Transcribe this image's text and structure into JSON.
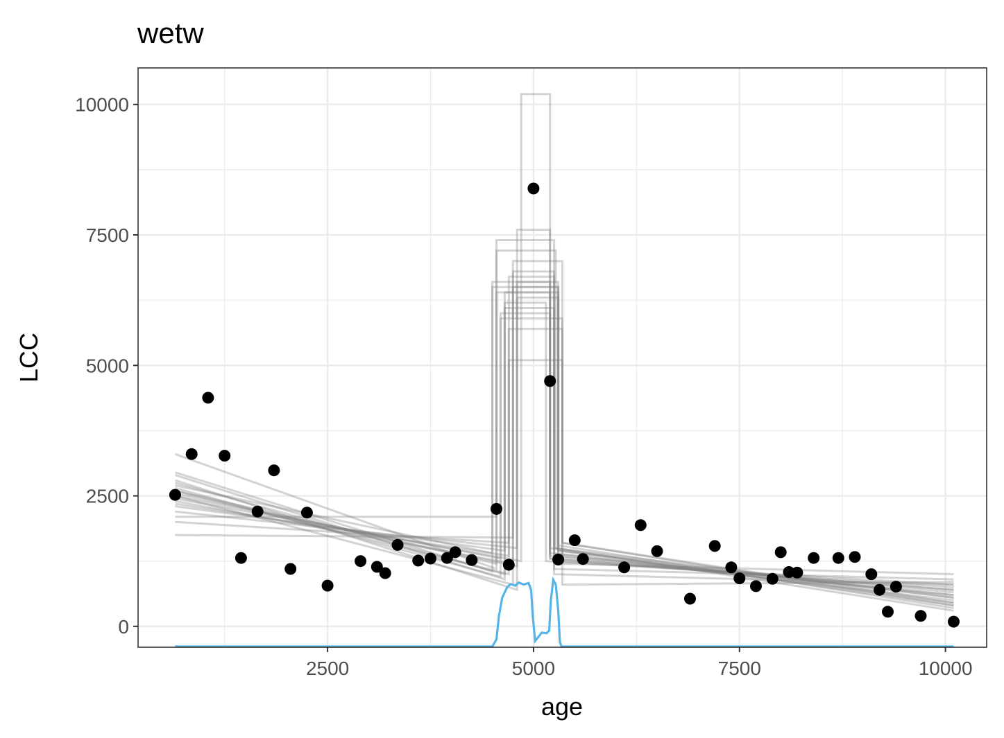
{
  "chart_data": {
    "type": "scatter",
    "title": "wetw",
    "xlabel": "age",
    "ylabel": "LCC",
    "xlim": [
      200,
      10500
    ],
    "ylim": [
      -400,
      10700
    ],
    "x_ticks": [
      2500,
      5000,
      7500,
      10000
    ],
    "x_tick_labels": [
      "2500",
      "5000",
      "7500",
      "10000"
    ],
    "y_ticks": [
      0,
      2500,
      5000,
      7500,
      10000
    ],
    "y_tick_labels": [
      "0",
      "2500",
      "5000",
      "7500",
      "10000"
    ],
    "grid": true,
    "colors": {
      "points": "#000000",
      "sample_lines": "#808080",
      "density": "#56b4e9",
      "panel_border": "#333333",
      "grid": "#ebebeb"
    },
    "points": [
      {
        "x": 650,
        "y": 2520
      },
      {
        "x": 850,
        "y": 3300
      },
      {
        "x": 1050,
        "y": 4380
      },
      {
        "x": 1250,
        "y": 3270
      },
      {
        "x": 1450,
        "y": 1310
      },
      {
        "x": 1650,
        "y": 2200
      },
      {
        "x": 1850,
        "y": 2990
      },
      {
        "x": 2050,
        "y": 1100
      },
      {
        "x": 2250,
        "y": 2180
      },
      {
        "x": 2500,
        "y": 780
      },
      {
        "x": 2900,
        "y": 1250
      },
      {
        "x": 3100,
        "y": 1140
      },
      {
        "x": 3200,
        "y": 1020
      },
      {
        "x": 3350,
        "y": 1560
      },
      {
        "x": 3600,
        "y": 1260
      },
      {
        "x": 3750,
        "y": 1300
      },
      {
        "x": 3950,
        "y": 1310
      },
      {
        "x": 4050,
        "y": 1420
      },
      {
        "x": 4250,
        "y": 1270
      },
      {
        "x": 4550,
        "y": 2250
      },
      {
        "x": 4700,
        "y": 1180
      },
      {
        "x": 5000,
        "y": 8390
      },
      {
        "x": 5200,
        "y": 4700
      },
      {
        "x": 5300,
        "y": 1280
      },
      {
        "x": 5500,
        "y": 1650
      },
      {
        "x": 5600,
        "y": 1290
      },
      {
        "x": 6100,
        "y": 1130
      },
      {
        "x": 6300,
        "y": 1940
      },
      {
        "x": 6500,
        "y": 1440
      },
      {
        "x": 6900,
        "y": 530
      },
      {
        "x": 7200,
        "y": 1540
      },
      {
        "x": 7400,
        "y": 1130
      },
      {
        "x": 7500,
        "y": 920
      },
      {
        "x": 7700,
        "y": 770
      },
      {
        "x": 7900,
        "y": 910
      },
      {
        "x": 8000,
        "y": 1420
      },
      {
        "x": 8100,
        "y": 1040
      },
      {
        "x": 8200,
        "y": 1030
      },
      {
        "x": 8400,
        "y": 1310
      },
      {
        "x": 8700,
        "y": 1310
      },
      {
        "x": 8900,
        "y": 1330
      },
      {
        "x": 9100,
        "y": 1000
      },
      {
        "x": 9200,
        "y": 700
      },
      {
        "x": 9300,
        "y": 280
      },
      {
        "x": 9400,
        "y": 760
      },
      {
        "x": 9700,
        "y": 200
      },
      {
        "x": 10100,
        "y": 90
      }
    ],
    "sample_lines": [
      {
        "cp1": 4550,
        "cp2": 5270,
        "y0": 3300,
        "y1": 1100,
        "h": 7200,
        "y2": 1500,
        "y3": 300
      },
      {
        "cp1": 4650,
        "cp2": 5300,
        "y0": 2900,
        "y1": 900,
        "h": 6400,
        "y2": 1450,
        "y3": 550
      },
      {
        "cp1": 4500,
        "cp2": 5200,
        "y0": 2700,
        "y1": 1400,
        "h": 6600,
        "y2": 1300,
        "y3": 700
      },
      {
        "cp1": 4700,
        "cp2": 5250,
        "y0": 2600,
        "y1": 1000,
        "h": 6700,
        "y2": 1400,
        "y3": 500
      },
      {
        "cp1": 4600,
        "cp2": 5350,
        "y0": 2500,
        "y1": 1300,
        "h": 5900,
        "y2": 1600,
        "y3": 450
      },
      {
        "cp1": 4750,
        "cp2": 5300,
        "y0": 2400,
        "y1": 1200,
        "h": 6500,
        "y2": 1350,
        "y3": 650
      },
      {
        "cp1": 4800,
        "cp2": 5200,
        "y0": 2800,
        "y1": 700,
        "h": 7600,
        "y2": 1500,
        "y3": 400
      },
      {
        "cp1": 4650,
        "cp2": 5150,
        "y0": 2300,
        "y1": 1450,
        "h": 6200,
        "y2": 1250,
        "y3": 800
      },
      {
        "cp1": 4550,
        "cp2": 5250,
        "y0": 2100,
        "y1": 2100,
        "h": 7400,
        "y2": 1100,
        "y3": 900
      },
      {
        "cp1": 4700,
        "cp2": 5350,
        "y0": 2000,
        "y1": 1600,
        "h": 5700,
        "y2": 1200,
        "y3": 1000
      },
      {
        "cp1": 4800,
        "cp2": 5300,
        "y0": 2550,
        "y1": 1150,
        "h": 6300,
        "y2": 1550,
        "y3": 350
      },
      {
        "cp1": 4600,
        "cp2": 5200,
        "y0": 2650,
        "y1": 950,
        "h": 6000,
        "y2": 1350,
        "y3": 600
      },
      {
        "cp1": 4750,
        "cp2": 5250,
        "y0": 1750,
        "y1": 1700,
        "h": 6800,
        "y2": 1000,
        "y3": 800
      },
      {
        "cp1": 4500,
        "cp2": 5300,
        "y0": 2950,
        "y1": 1050,
        "h": 6500,
        "y2": 1450,
        "y3": 450
      },
      {
        "cp1": 4850,
        "cp2": 5200,
        "y0": 2450,
        "y1": 1250,
        "h": 10200,
        "y2": 1300,
        "y3": 700
      },
      {
        "cp1": 4700,
        "cp2": 5350,
        "y0": 2350,
        "y1": 1350,
        "h": 5100,
        "y2": 800,
        "y3": 850
      },
      {
        "cp1": 4650,
        "cp2": 5250,
        "y0": 2750,
        "y1": 1000,
        "h": 6100,
        "y2": 1500,
        "y3": 550
      },
      {
        "cp1": 4800,
        "cp2": 5300,
        "y0": 2200,
        "y1": 1500,
        "h": 6600,
        "y2": 1250,
        "y3": 750
      },
      {
        "cp1": 4550,
        "cp2": 5200,
        "y0": 2600,
        "y1": 1200,
        "h": 6400,
        "y2": 1400,
        "y3": 600
      },
      {
        "cp1": 4750,
        "cp2": 5350,
        "y0": 2500,
        "y1": 800,
        "h": 7000,
        "y2": 1600,
        "y3": 400
      }
    ],
    "density": [
      [
        650,
        0
      ],
      [
        4500,
        0
      ],
      [
        4550,
        150
      ],
      [
        4580,
        600
      ],
      [
        4620,
        950
      ],
      [
        4680,
        1150
      ],
      [
        4720,
        1210
      ],
      [
        4780,
        1180
      ],
      [
        4820,
        1240
      ],
      [
        4880,
        1200
      ],
      [
        4940,
        1230
      ],
      [
        4970,
        1100
      ],
      [
        4990,
        600
      ],
      [
        5020,
        120
      ],
      [
        5060,
        200
      ],
      [
        5100,
        280
      ],
      [
        5160,
        270
      ],
      [
        5190,
        320
      ],
      [
        5210,
        900
      ],
      [
        5240,
        1290
      ],
      [
        5270,
        1200
      ],
      [
        5300,
        700
      ],
      [
        5320,
        100
      ],
      [
        5340,
        0
      ],
      [
        10100,
        0
      ]
    ]
  }
}
